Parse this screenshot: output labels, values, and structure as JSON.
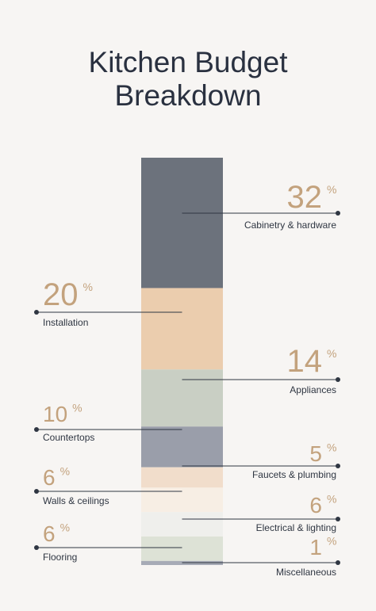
{
  "title_line1": "Kitchen Budget",
  "title_line2": "Breakdown",
  "chart_data": {
    "type": "bar",
    "stacked": true,
    "title": "Kitchen Budget Breakdown",
    "unit": "%",
    "segments": [
      {
        "label": "Cabinetry & hardware",
        "value": 32,
        "color": "#6c727c",
        "side": "right"
      },
      {
        "label": "Installation",
        "value": 20,
        "color": "#ebcdae",
        "side": "left"
      },
      {
        "label": "Appliances",
        "value": 14,
        "color": "#c9cfc4",
        "side": "right"
      },
      {
        "label": "Countertops",
        "value": 10,
        "color": "#9a9eaa",
        "side": "left"
      },
      {
        "label": "Faucets & plumbing",
        "value": 5,
        "color": "#f1ddcb",
        "side": "right"
      },
      {
        "label": "Walls & ceilings",
        "value": 6,
        "color": "#f7eee4",
        "side": "left"
      },
      {
        "label": "Electrical & lighting",
        "value": 6,
        "color": "#efefec",
        "side": "right"
      },
      {
        "label": "Flooring",
        "value": 6,
        "color": "#dde2d6",
        "side": "left"
      },
      {
        "label": "Miscellaneous",
        "value": 1,
        "color": "#a7abb6",
        "side": "right"
      }
    ],
    "colors": {
      "percent_text": "#c3a27d",
      "label_text": "#2f3642",
      "leader_line": "#2f3642"
    }
  }
}
